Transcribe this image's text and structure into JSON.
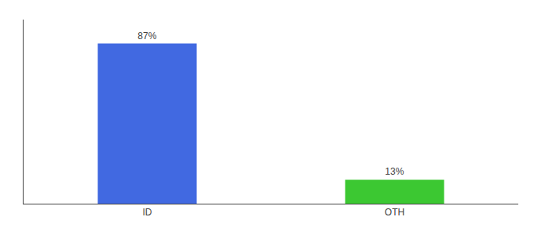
{
  "chart_data": {
    "type": "bar",
    "categories": [
      "ID",
      "OTH"
    ],
    "values": [
      87,
      13
    ],
    "value_labels": [
      "87%",
      "13%"
    ],
    "colors": [
      "#4169e1",
      "#3cc832"
    ],
    "ylim": [
      0,
      100
    ],
    "grid": false,
    "data_labels": true,
    "tick_labels": "x"
  }
}
